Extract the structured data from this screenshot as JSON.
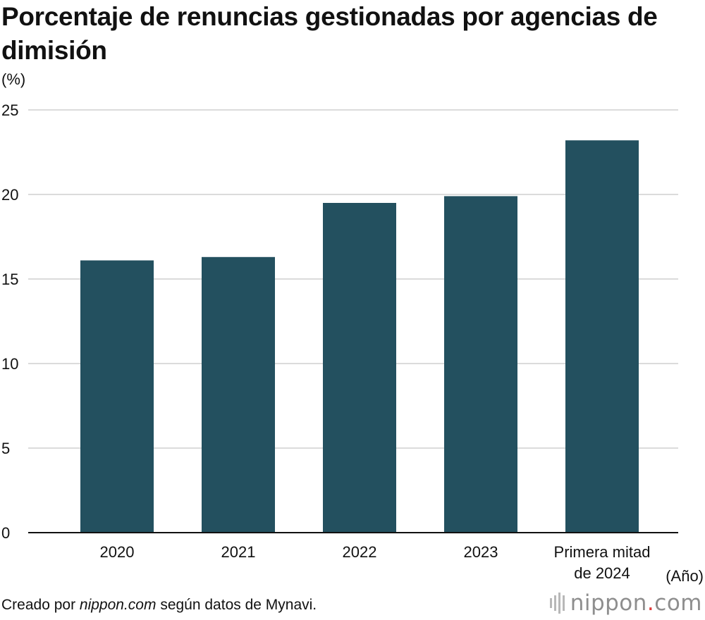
{
  "title": "Porcentaje de renuncias gestionadas por agencias de dimisión",
  "unit_label": "(%)",
  "x_unit_label": "(Año)",
  "footer": {
    "prefix": "Creado por ",
    "source_name": "nippon.com",
    "suffix": " según datos de Mynavi."
  },
  "logo": {
    "name": "nippon",
    "dot": ".",
    "domain": "com"
  },
  "colors": {
    "bar": "#23505f",
    "grid": "#cfcfcf",
    "axis": "#111111",
    "logo_dot": "#e03a3a"
  },
  "chart_data": {
    "type": "bar",
    "categories": [
      "2020",
      "2021",
      "2022",
      "2023",
      "Primera mitad de 2024"
    ],
    "category_lines": [
      [
        "2020"
      ],
      [
        "2021"
      ],
      [
        "2022"
      ],
      [
        "2023"
      ],
      [
        "Primera mitad",
        "de 2024"
      ]
    ],
    "values": [
      16.1,
      16.3,
      19.5,
      19.9,
      23.2
    ],
    "ylim": [
      0,
      25
    ],
    "yticks": [
      0,
      5,
      10,
      15,
      20,
      25
    ],
    "grid": true
  }
}
